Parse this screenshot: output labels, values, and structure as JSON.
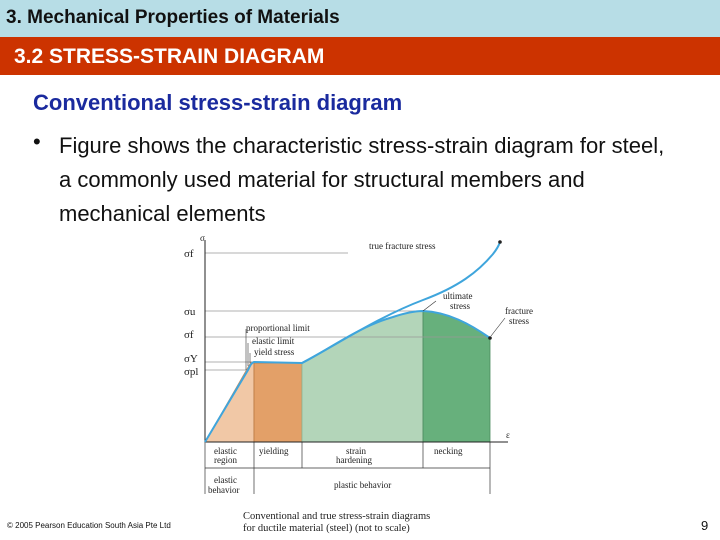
{
  "header": {
    "title": "3. Mechanical Properties of Materials"
  },
  "section": {
    "title": "3.2 STRESS-STRAIN DIAGRAM"
  },
  "content": {
    "heading": "Conventional stress-strain diagram",
    "bullet": "Figure shows the characteristic stress-strain diagram for steel, a commonly used material for structural members and mechanical elements"
  },
  "diagram": {
    "axis_sigma": "σ",
    "axis_epsilon": "ε",
    "y_labels": [
      "σf",
      "σu",
      "σf",
      "σY",
      "σpl"
    ],
    "labels": {
      "true_fracture_stress": "true fracture stress",
      "ultimate_stress_1": "ultimate",
      "ultimate_stress_2": "stress",
      "fracture_stress_1": "fracture",
      "fracture_stress_2": "stress",
      "proportional_limit": "proportional limit",
      "elastic_limit": "elastic limit",
      "yield_stress": "yield stress"
    },
    "regions": {
      "elastic_1": "elastic",
      "elastic_2": "region",
      "yielding": "yielding",
      "strain_1": "strain",
      "strain_2": "hardening",
      "necking": "necking"
    },
    "behaviors": {
      "elastic_1": "elastic",
      "elastic_2": "behavior",
      "plastic": "plastic behavior"
    },
    "colors": {
      "elastic": "#f1c8a6",
      "yielding": "#e3a068",
      "hardening": "#b3d5b9",
      "necking": "#67b07c",
      "curve": "#3fa5dc"
    }
  },
  "footer": {
    "copyright": "© 2005 Pearson Education South Asia Pte Ltd",
    "caption_1": "Conventional and true stress-strain diagrams",
    "caption_2": "for ductile material (steel) (not to scale)",
    "page_number": "9"
  }
}
